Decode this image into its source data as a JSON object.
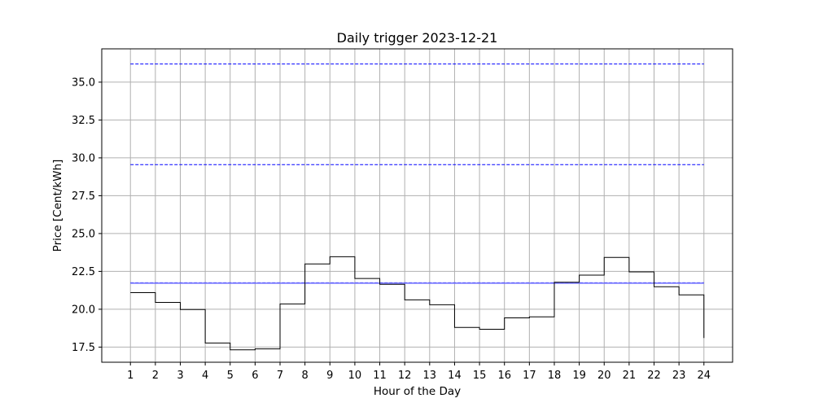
{
  "chart_data": {
    "type": "line",
    "title": "Daily trigger 2023-12-21",
    "xlabel": "Hour of the Day",
    "ylabel": "Price [Cent/kWh]",
    "xlim": [
      -0.15,
      25.15
    ],
    "ylim": [
      16.5,
      37.2
    ],
    "grid": true,
    "x_ticks": [
      1,
      2,
      3,
      4,
      5,
      6,
      7,
      8,
      9,
      10,
      11,
      12,
      13,
      14,
      15,
      16,
      17,
      18,
      19,
      20,
      21,
      22,
      23,
      24
    ],
    "y_ticks": [
      17.5,
      20.0,
      22.5,
      25.0,
      27.5,
      30.0,
      32.5,
      35.0
    ],
    "y_tick_labels": [
      "17.5",
      "20.0",
      "22.5",
      "25.0",
      "27.5",
      "30.0",
      "32.5",
      "35.0"
    ],
    "price_step": {
      "color": "#000000",
      "x": [
        1,
        2,
        3,
        4,
        5,
        6,
        7,
        8,
        9,
        10,
        11,
        12,
        13,
        14,
        15,
        16,
        17,
        18,
        19,
        20,
        21,
        22,
        23,
        24
      ],
      "values": [
        21.1,
        20.45,
        19.98,
        17.77,
        17.32,
        17.38,
        20.35,
        22.99,
        23.47,
        22.03,
        21.65,
        20.62,
        20.3,
        18.8,
        18.68,
        19.43,
        19.5,
        21.78,
        22.25,
        23.42,
        22.47,
        21.49,
        20.95,
        18.1
      ]
    },
    "reference_lines": [
      {
        "y": 36.2,
        "color": "#0000ff",
        "style": "dashed"
      },
      {
        "y": 29.55,
        "color": "#0000ff",
        "style": "dashed"
      },
      {
        "y": 21.75,
        "color": "#0000ff",
        "style": "dashed"
      },
      {
        "y": 21.72,
        "color": "#6f6fff",
        "style": "solid"
      }
    ],
    "reference_xrange": [
      1,
      24
    ]
  }
}
